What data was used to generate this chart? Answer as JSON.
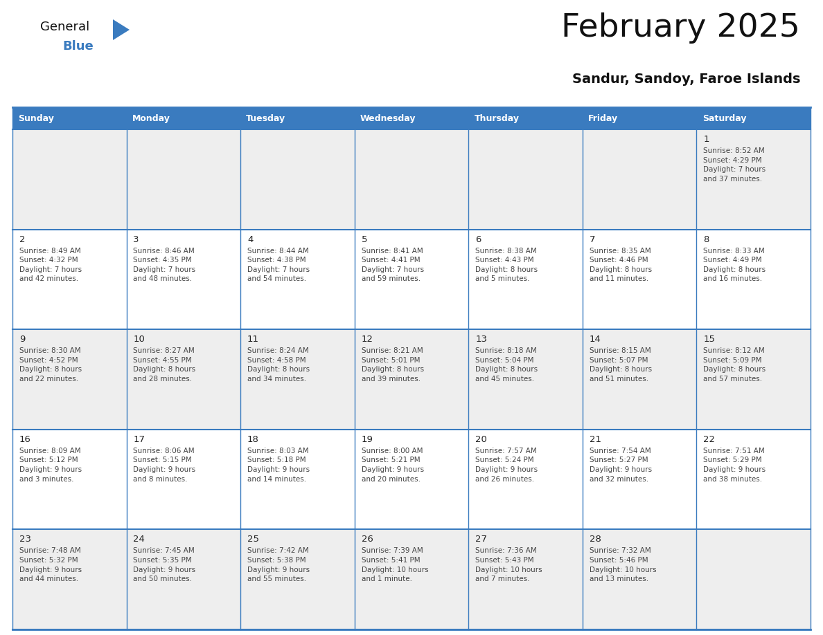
{
  "title": "February 2025",
  "subtitle": "Sandur, Sandoy, Faroe Islands",
  "header_color": "#3a7bbf",
  "header_text_color": "#ffffff",
  "cell_bg_color": "#eeeeee",
  "cell_white_bg": "#ffffff",
  "border_color": "#3a7bbf",
  "text_color": "#333333",
  "day_names": [
    "Sunday",
    "Monday",
    "Tuesday",
    "Wednesday",
    "Thursday",
    "Friday",
    "Saturday"
  ],
  "days": [
    {
      "day": 1,
      "col": 6,
      "row": 0,
      "sunrise": "8:52 AM",
      "sunset": "4:29 PM",
      "daylight": "7 hours\nand 37 minutes."
    },
    {
      "day": 2,
      "col": 0,
      "row": 1,
      "sunrise": "8:49 AM",
      "sunset": "4:32 PM",
      "daylight": "7 hours\nand 42 minutes."
    },
    {
      "day": 3,
      "col": 1,
      "row": 1,
      "sunrise": "8:46 AM",
      "sunset": "4:35 PM",
      "daylight": "7 hours\nand 48 minutes."
    },
    {
      "day": 4,
      "col": 2,
      "row": 1,
      "sunrise": "8:44 AM",
      "sunset": "4:38 PM",
      "daylight": "7 hours\nand 54 minutes."
    },
    {
      "day": 5,
      "col": 3,
      "row": 1,
      "sunrise": "8:41 AM",
      "sunset": "4:41 PM",
      "daylight": "7 hours\nand 59 minutes."
    },
    {
      "day": 6,
      "col": 4,
      "row": 1,
      "sunrise": "8:38 AM",
      "sunset": "4:43 PM",
      "daylight": "8 hours\nand 5 minutes."
    },
    {
      "day": 7,
      "col": 5,
      "row": 1,
      "sunrise": "8:35 AM",
      "sunset": "4:46 PM",
      "daylight": "8 hours\nand 11 minutes."
    },
    {
      "day": 8,
      "col": 6,
      "row": 1,
      "sunrise": "8:33 AM",
      "sunset": "4:49 PM",
      "daylight": "8 hours\nand 16 minutes."
    },
    {
      "day": 9,
      "col": 0,
      "row": 2,
      "sunrise": "8:30 AM",
      "sunset": "4:52 PM",
      "daylight": "8 hours\nand 22 minutes."
    },
    {
      "day": 10,
      "col": 1,
      "row": 2,
      "sunrise": "8:27 AM",
      "sunset": "4:55 PM",
      "daylight": "8 hours\nand 28 minutes."
    },
    {
      "day": 11,
      "col": 2,
      "row": 2,
      "sunrise": "8:24 AM",
      "sunset": "4:58 PM",
      "daylight": "8 hours\nand 34 minutes."
    },
    {
      "day": 12,
      "col": 3,
      "row": 2,
      "sunrise": "8:21 AM",
      "sunset": "5:01 PM",
      "daylight": "8 hours\nand 39 minutes."
    },
    {
      "day": 13,
      "col": 4,
      "row": 2,
      "sunrise": "8:18 AM",
      "sunset": "5:04 PM",
      "daylight": "8 hours\nand 45 minutes."
    },
    {
      "day": 14,
      "col": 5,
      "row": 2,
      "sunrise": "8:15 AM",
      "sunset": "5:07 PM",
      "daylight": "8 hours\nand 51 minutes."
    },
    {
      "day": 15,
      "col": 6,
      "row": 2,
      "sunrise": "8:12 AM",
      "sunset": "5:09 PM",
      "daylight": "8 hours\nand 57 minutes."
    },
    {
      "day": 16,
      "col": 0,
      "row": 3,
      "sunrise": "8:09 AM",
      "sunset": "5:12 PM",
      "daylight": "9 hours\nand 3 minutes."
    },
    {
      "day": 17,
      "col": 1,
      "row": 3,
      "sunrise": "8:06 AM",
      "sunset": "5:15 PM",
      "daylight": "9 hours\nand 8 minutes."
    },
    {
      "day": 18,
      "col": 2,
      "row": 3,
      "sunrise": "8:03 AM",
      "sunset": "5:18 PM",
      "daylight": "9 hours\nand 14 minutes."
    },
    {
      "day": 19,
      "col": 3,
      "row": 3,
      "sunrise": "8:00 AM",
      "sunset": "5:21 PM",
      "daylight": "9 hours\nand 20 minutes."
    },
    {
      "day": 20,
      "col": 4,
      "row": 3,
      "sunrise": "7:57 AM",
      "sunset": "5:24 PM",
      "daylight": "9 hours\nand 26 minutes."
    },
    {
      "day": 21,
      "col": 5,
      "row": 3,
      "sunrise": "7:54 AM",
      "sunset": "5:27 PM",
      "daylight": "9 hours\nand 32 minutes."
    },
    {
      "day": 22,
      "col": 6,
      "row": 3,
      "sunrise": "7:51 AM",
      "sunset": "5:29 PM",
      "daylight": "9 hours\nand 38 minutes."
    },
    {
      "day": 23,
      "col": 0,
      "row": 4,
      "sunrise": "7:48 AM",
      "sunset": "5:32 PM",
      "daylight": "9 hours\nand 44 minutes."
    },
    {
      "day": 24,
      "col": 1,
      "row": 4,
      "sunrise": "7:45 AM",
      "sunset": "5:35 PM",
      "daylight": "9 hours\nand 50 minutes."
    },
    {
      "day": 25,
      "col": 2,
      "row": 4,
      "sunrise": "7:42 AM",
      "sunset": "5:38 PM",
      "daylight": "9 hours\nand 55 minutes."
    },
    {
      "day": 26,
      "col": 3,
      "row": 4,
      "sunrise": "7:39 AM",
      "sunset": "5:41 PM",
      "daylight": "10 hours\nand 1 minute."
    },
    {
      "day": 27,
      "col": 4,
      "row": 4,
      "sunrise": "7:36 AM",
      "sunset": "5:43 PM",
      "daylight": "10 hours\nand 7 minutes."
    },
    {
      "day": 28,
      "col": 5,
      "row": 4,
      "sunrise": "7:32 AM",
      "sunset": "5:46 PM",
      "daylight": "10 hours\nand 13 minutes."
    }
  ],
  "num_rows": 5,
  "num_cols": 7
}
